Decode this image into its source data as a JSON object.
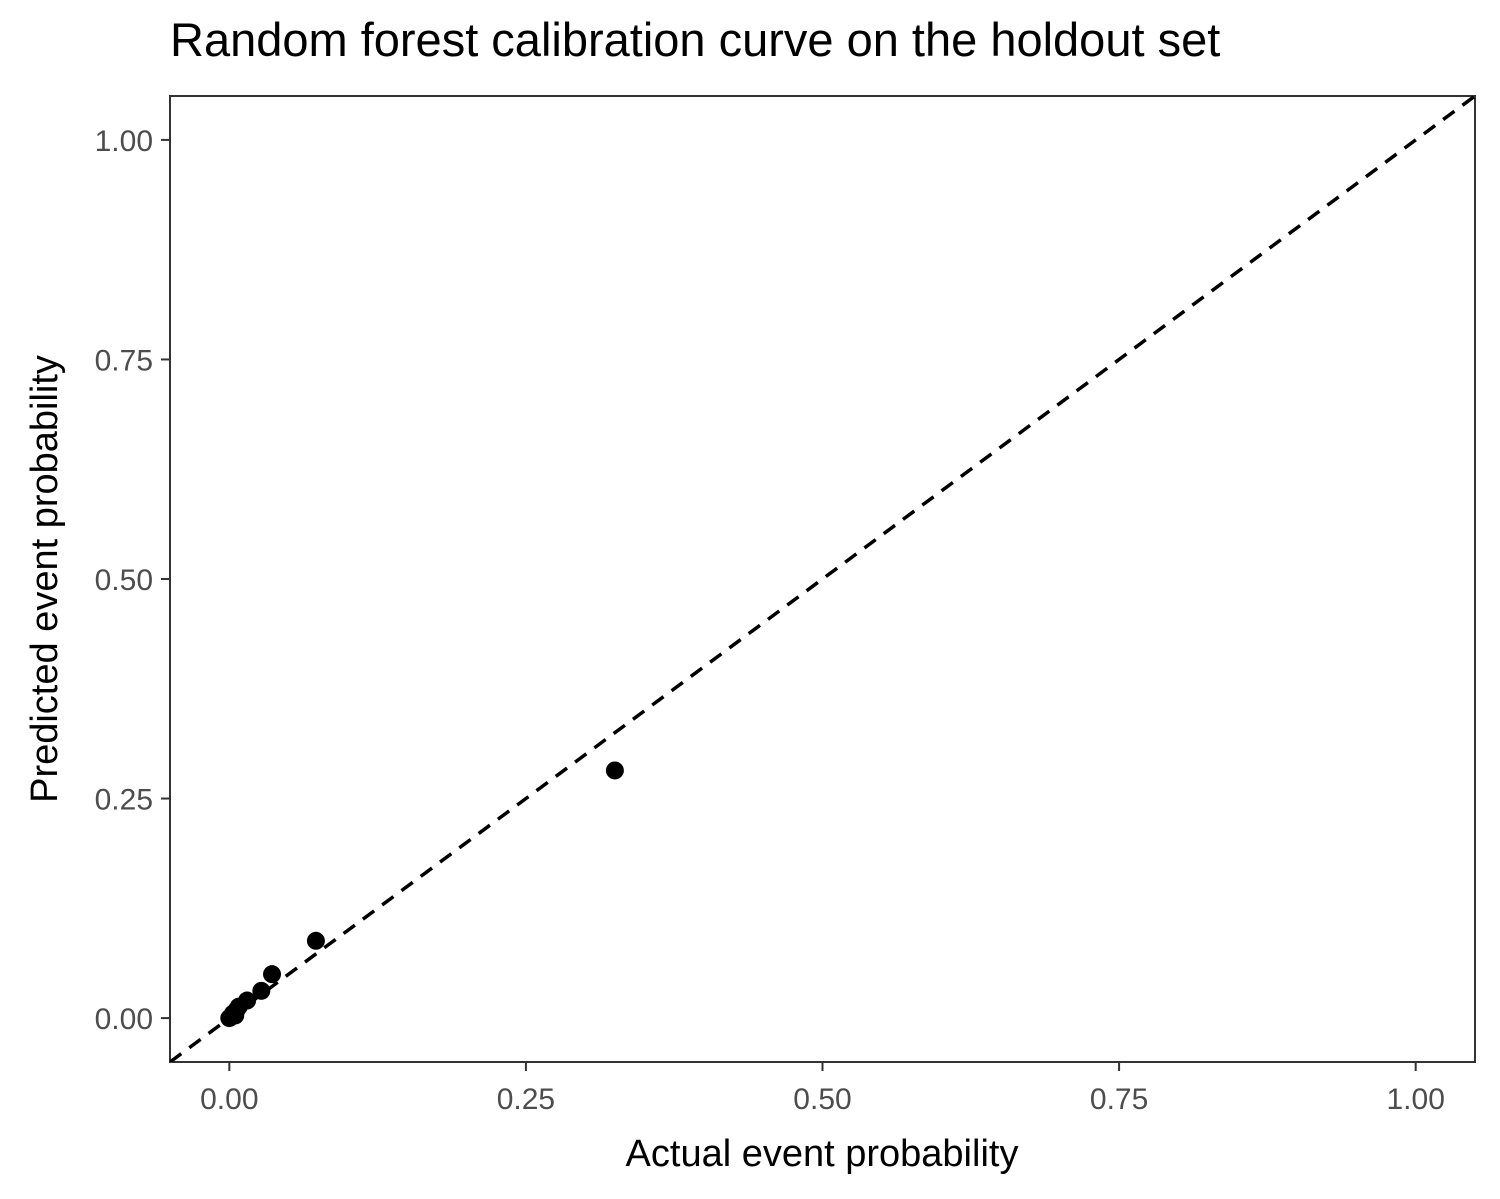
{
  "chart_data": {
    "type": "scatter",
    "title": "Random forest calibration curve on the holdout set",
    "xlabel": "Actual event probability",
    "ylabel": "Predicted event probability",
    "xlim": [
      -0.05,
      1.05
    ],
    "ylim": [
      -0.05,
      1.05
    ],
    "x_ticks": [
      "0.00",
      "0.25",
      "0.50",
      "0.75",
      "1.00"
    ],
    "y_ticks": [
      "0.00",
      "0.25",
      "0.50",
      "0.75",
      "1.00"
    ],
    "grid": false,
    "reference_line": {
      "style": "dashed",
      "slope": 1,
      "intercept": 0,
      "color": "#000000"
    },
    "point_color": "#000000",
    "points": [
      {
        "x": 0.0,
        "y": 0.0
      },
      {
        "x": 0.003,
        "y": 0.005
      },
      {
        "x": 0.005,
        "y": 0.003
      },
      {
        "x": 0.006,
        "y": 0.009
      },
      {
        "x": 0.008,
        "y": 0.013
      },
      {
        "x": 0.015,
        "y": 0.02
      },
      {
        "x": 0.027,
        "y": 0.031
      },
      {
        "x": 0.036,
        "y": 0.05
      },
      {
        "x": 0.073,
        "y": 0.088
      },
      {
        "x": 0.325,
        "y": 0.282
      }
    ]
  }
}
